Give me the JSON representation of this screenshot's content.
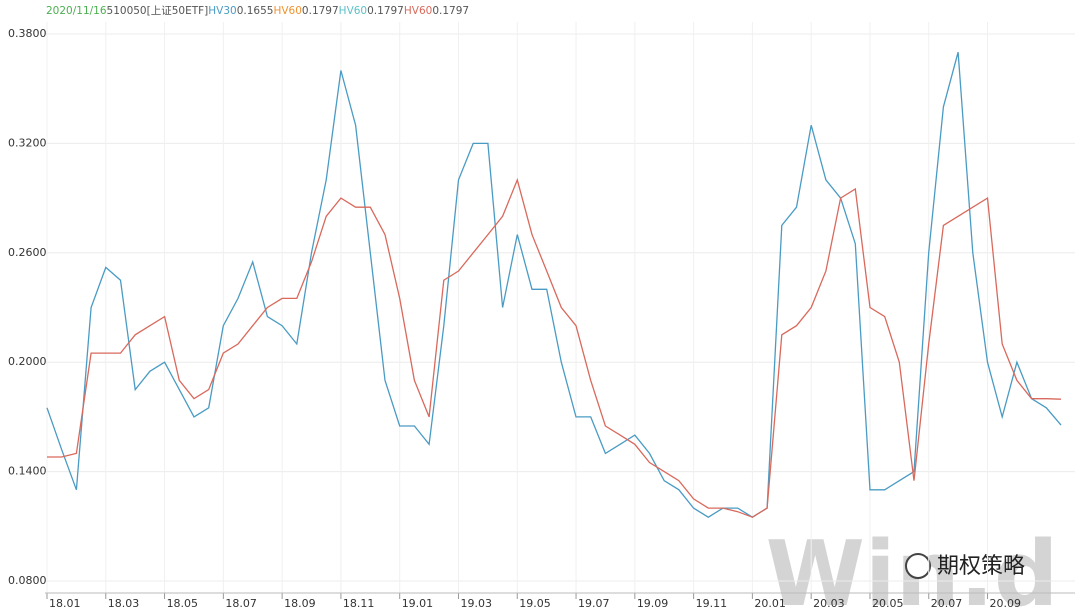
{
  "chart_data": {
    "type": "line",
    "header": [
      {
        "text": "2020/11/16",
        "color": "#4caf50"
      },
      {
        "text": "510050[上证50ETF]",
        "color": "#555555"
      },
      {
        "text": "HV30",
        "color": "#4a9bc4"
      },
      {
        "text": 0.1655,
        "color": "#555555"
      },
      {
        "text": "HV60",
        "color": "#f0922e"
      },
      {
        "text": 0.1797,
        "color": "#555555"
      },
      {
        "text": "HV60",
        "color": "#5bc0c7"
      },
      {
        "text": 0.1797,
        "color": "#555555"
      },
      {
        "text": "HV60",
        "color": "#d9695c"
      },
      {
        "text": 0.1797,
        "color": "#555555"
      }
    ],
    "watermark": "Win.d",
    "badge": "期权策略",
    "categories": [
      "18.01",
      null,
      null,
      null,
      "18.03",
      null,
      null,
      null,
      "18.05",
      null,
      null,
      null,
      "18.07",
      null,
      null,
      null,
      "18.09",
      null,
      null,
      null,
      "18.11",
      null,
      null,
      null,
      "19.01",
      null,
      null,
      null,
      "19.03",
      null,
      null,
      null,
      "19.05",
      null,
      null,
      null,
      "19.07",
      null,
      null,
      null,
      "19.09",
      null,
      null,
      null,
      "19.11",
      null,
      null,
      null,
      "20.01",
      null,
      null,
      null,
      "20.03",
      null,
      null,
      null,
      "20.05",
      null,
      null,
      null,
      "20.07",
      null,
      null,
      null,
      "20.09",
      null,
      null,
      null,
      null,
      null
    ],
    "series": [
      {
        "name": "HV30",
        "color": "#4a9bc4",
        "values": [
          0.175,
          0.152,
          0.13,
          0.23,
          0.252,
          0.245,
          0.185,
          0.195,
          0.2,
          0.185,
          0.17,
          0.175,
          0.22,
          0.235,
          0.255,
          0.225,
          0.22,
          0.21,
          0.26,
          0.3,
          0.36,
          0.33,
          0.26,
          0.19,
          0.165,
          0.165,
          0.155,
          0.22,
          0.3,
          0.32,
          0.32,
          0.23,
          0.27,
          0.24,
          0.24,
          0.2,
          0.17,
          0.17,
          0.15,
          0.155,
          0.16,
          0.15,
          0.135,
          0.13,
          0.12,
          0.115,
          0.12,
          0.12,
          0.115,
          0.12,
          0.275,
          0.285,
          0.33,
          0.3,
          0.29,
          0.265,
          0.13,
          0.13,
          0.135,
          0.14,
          0.26,
          0.34,
          0.37,
          0.26,
          0.2,
          0.17,
          0.2,
          0.18,
          0.175,
          0.1655
        ]
      },
      {
        "name": "HV60",
        "color": "#d9695c",
        "values": [
          0.148,
          0.148,
          0.15,
          0.205,
          0.205,
          0.205,
          0.215,
          0.22,
          0.225,
          0.19,
          0.18,
          0.185,
          0.205,
          0.21,
          0.22,
          0.23,
          0.235,
          0.235,
          0.255,
          0.28,
          0.29,
          0.285,
          0.285,
          0.27,
          0.235,
          0.19,
          0.17,
          0.245,
          0.25,
          0.26,
          0.27,
          0.28,
          0.3,
          0.27,
          0.25,
          0.23,
          0.22,
          0.19,
          0.165,
          0.16,
          0.155,
          0.145,
          0.14,
          0.135,
          0.125,
          0.12,
          0.12,
          0.118,
          0.115,
          0.12,
          0.215,
          0.22,
          0.23,
          0.25,
          0.29,
          0.295,
          0.23,
          0.225,
          0.2,
          0.135,
          0.21,
          0.275,
          0.28,
          0.285,
          0.29,
          0.21,
          0.19,
          0.18,
          0.18,
          0.1797
        ]
      }
    ],
    "ylim": [
      0.08,
      0.38
    ],
    "yticks": [
      {
        "value": 0.08,
        "label": "0.0800"
      },
      {
        "value": 0.14,
        "label": "0.1400"
      },
      {
        "value": 0.2,
        "label": "0.2000"
      },
      {
        "value": 0.26,
        "label": "0.2600"
      },
      {
        "value": 0.32,
        "label": "0.3200"
      },
      {
        "value": 0.38,
        "label": "0.3800"
      }
    ],
    "grid": true
  }
}
